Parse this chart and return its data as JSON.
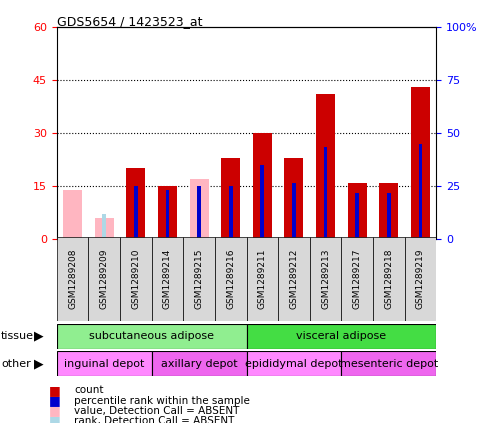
{
  "title": "GDS5654 / 1423523_at",
  "samples": [
    "GSM1289208",
    "GSM1289209",
    "GSM1289210",
    "GSM1289214",
    "GSM1289215",
    "GSM1289216",
    "GSM1289211",
    "GSM1289212",
    "GSM1289213",
    "GSM1289217",
    "GSM1289218",
    "GSM1289219"
  ],
  "count_values": [
    0,
    0,
    20,
    15,
    0,
    23,
    30,
    23,
    41,
    16,
    16,
    43
  ],
  "percentile_values": [
    0,
    0,
    15,
    14,
    15,
    15,
    21,
    16,
    26,
    13,
    13,
    27
  ],
  "absent_value_values": [
    14,
    6,
    0,
    0,
    17,
    0,
    0,
    0,
    0,
    0,
    0,
    0
  ],
  "absent_rank_values": [
    0,
    7,
    0,
    0,
    0,
    0,
    0,
    0,
    0,
    0,
    0,
    0
  ],
  "ylim_left": [
    0,
    60
  ],
  "ylim_right": [
    0,
    100
  ],
  "yticks_left": [
    0,
    15,
    30,
    45,
    60
  ],
  "ytick_labels_left": [
    "0",
    "15",
    "30",
    "45",
    "60"
  ],
  "yticks_right": [
    0,
    25,
    50,
    75,
    100
  ],
  "ytick_labels_right": [
    "0",
    "25",
    "50",
    "75",
    "100%"
  ],
  "tissue_groups": [
    {
      "label": "subcutaneous adipose",
      "start": 0,
      "end": 6,
      "color": "#90EE90"
    },
    {
      "label": "visceral adipose",
      "start": 6,
      "end": 12,
      "color": "#44DD44"
    }
  ],
  "other_groups": [
    {
      "label": "inguinal depot",
      "start": 0,
      "end": 3,
      "color": "#FF88FF"
    },
    {
      "label": "axillary depot",
      "start": 3,
      "end": 6,
      "color": "#EE66EE"
    },
    {
      "label": "epididymal depot",
      "start": 6,
      "end": 9,
      "color": "#FF88FF"
    },
    {
      "label": "mesenteric depot",
      "start": 9,
      "end": 12,
      "color": "#EE66EE"
    }
  ],
  "color_count": "#CC0000",
  "color_percentile": "#0000CC",
  "color_absent_value": "#FFB6C1",
  "color_absent_rank": "#ADD8E6",
  "bar_width": 0.6,
  "percentile_bar_width": 0.12
}
